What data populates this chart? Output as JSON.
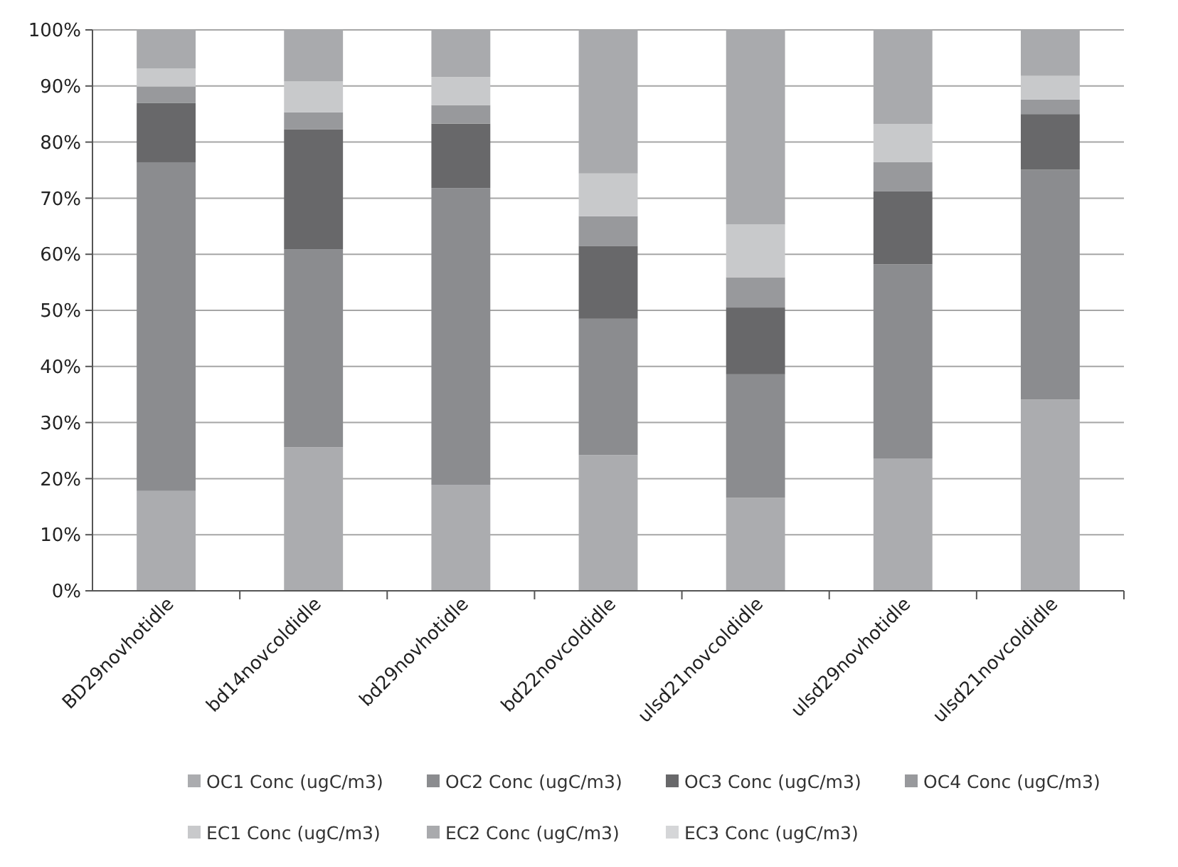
{
  "chart_data": {
    "type": "bar",
    "stacked": true,
    "categories": [
      "BD29novhotidle",
      "bd14novcoldidle",
      "bd29novhotidle",
      "bd22novcoldidle",
      "ulsd21novcoldidle",
      "ulsd29novhotidle",
      "ulsd21novcoldidle"
    ],
    "series": [
      {
        "name": "OC1 Conc (ugC/m3)",
        "color": "#abacaf",
        "values": [
          17.8,
          25.6,
          18.9,
          24.2,
          16.6,
          23.6,
          34.1
        ]
      },
      {
        "name": "OC2 Conc (ugC/m3)",
        "color": "#8b8c8f",
        "values": [
          58.6,
          35.3,
          52.9,
          24.3,
          22.0,
          34.6,
          41.0
        ]
      },
      {
        "name": "OC3 Conc (ugC/m3)",
        "color": "#68686a",
        "values": [
          10.6,
          21.4,
          11.5,
          13.0,
          11.9,
          13.0,
          9.9
        ]
      },
      {
        "name": "OC4 Conc (ugC/m3)",
        "color": "#98999c",
        "values": [
          2.9,
          3.0,
          3.3,
          5.3,
          5.4,
          5.2,
          2.6
        ]
      },
      {
        "name": "EC1 Conc (ugC/m3)",
        "color": "#c8c9cb",
        "values": [
          3.2,
          5.5,
          5.0,
          7.6,
          9.4,
          6.8,
          4.2
        ]
      },
      {
        "name": "EC2 Conc (ugC/m3)",
        "color": "#a9aaad",
        "values": [
          6.9,
          9.2,
          8.4,
          25.6,
          34.7,
          16.8,
          8.2
        ]
      },
      {
        "name": "EC3 Conc (ugC/m3)",
        "color": "#d5d6d8",
        "values": [
          0,
          0,
          0,
          0,
          0,
          0,
          0
        ]
      }
    ],
    "ylim": [
      0,
      100
    ],
    "yticks": [
      {
        "value": 0,
        "label": "0%"
      },
      {
        "value": 10,
        "label": "10%"
      },
      {
        "value": 20,
        "label": "20%"
      },
      {
        "value": 30,
        "label": "30%"
      },
      {
        "value": 40,
        "label": "40%"
      },
      {
        "value": 50,
        "label": "50%"
      },
      {
        "value": 60,
        "label": "60%"
      },
      {
        "value": 70,
        "label": "70%"
      },
      {
        "value": 80,
        "label": "80%"
      },
      {
        "value": 90,
        "label": "90%"
      },
      {
        "value": 100,
        "label": "100%"
      }
    ],
    "grid": "y",
    "legend": "bottom"
  }
}
